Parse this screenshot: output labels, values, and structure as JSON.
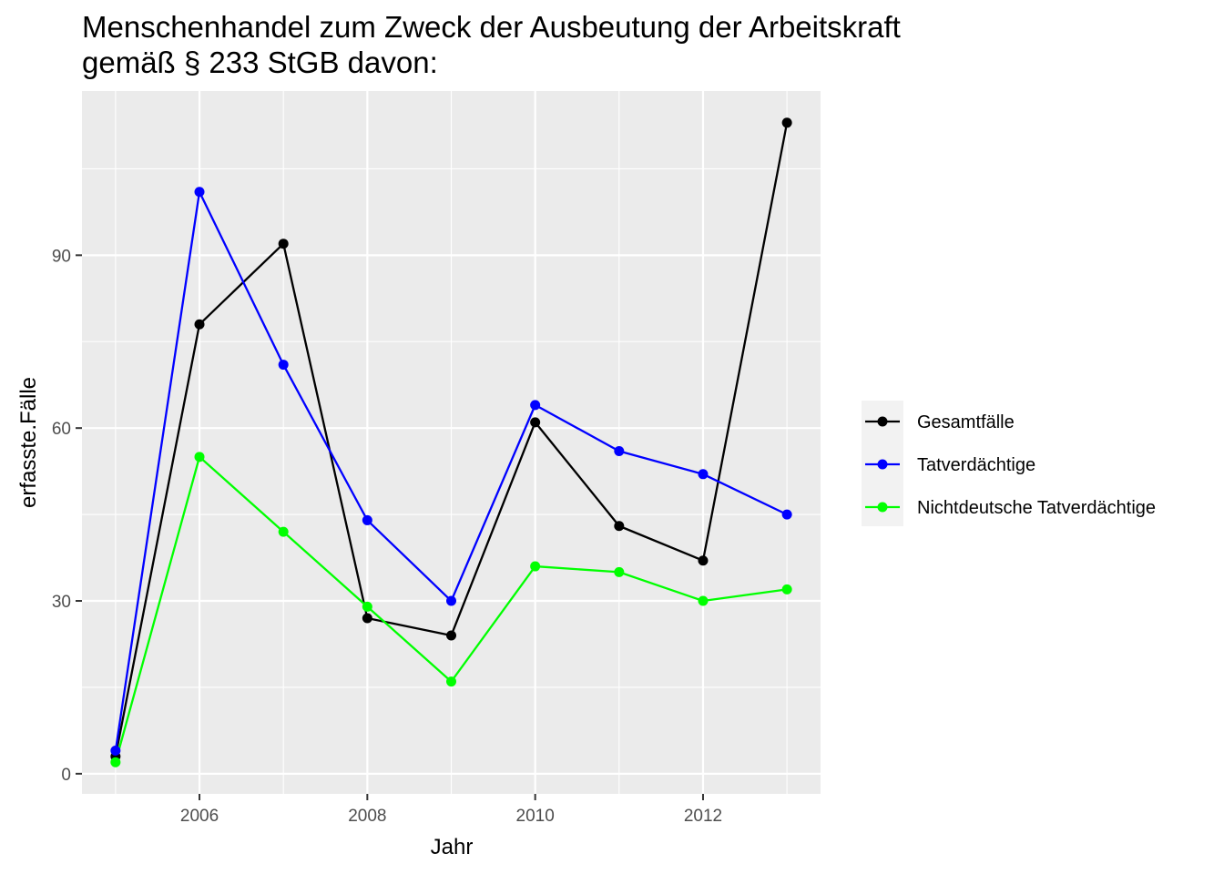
{
  "chart_data": {
    "type": "line",
    "title": "Menschenhandel zum Zweck der Ausbeutung der Arbeitskraft",
    "subtitle": "gemäß § 233 StGB davon:",
    "xlabel": "Jahr",
    "ylabel": "erfasste.Fälle",
    "x": [
      2005,
      2006,
      2007,
      2008,
      2009,
      2010,
      2011,
      2012,
      2013
    ],
    "x_ticks": [
      2006,
      2008,
      2010,
      2012
    ],
    "y_ticks": [
      0,
      30,
      60,
      90
    ],
    "xlim": [
      2004.6,
      2013.4
    ],
    "ylim": [
      -3.5,
      118.5
    ],
    "grid": true,
    "legend_position": "right",
    "series": [
      {
        "name": "Gesamtfälle",
        "color": "#000000",
        "values": [
          3,
          78,
          92,
          27,
          24,
          61,
          43,
          37,
          113
        ]
      },
      {
        "name": "Tatverdächtige",
        "color": "#0000ff",
        "values": [
          4,
          101,
          71,
          44,
          30,
          64,
          56,
          52,
          45
        ]
      },
      {
        "name": "Nichtdeutsche Tatverdächtige",
        "color": "#00ff00",
        "values": [
          2,
          55,
          42,
          29,
          16,
          36,
          35,
          30,
          32
        ]
      }
    ]
  }
}
